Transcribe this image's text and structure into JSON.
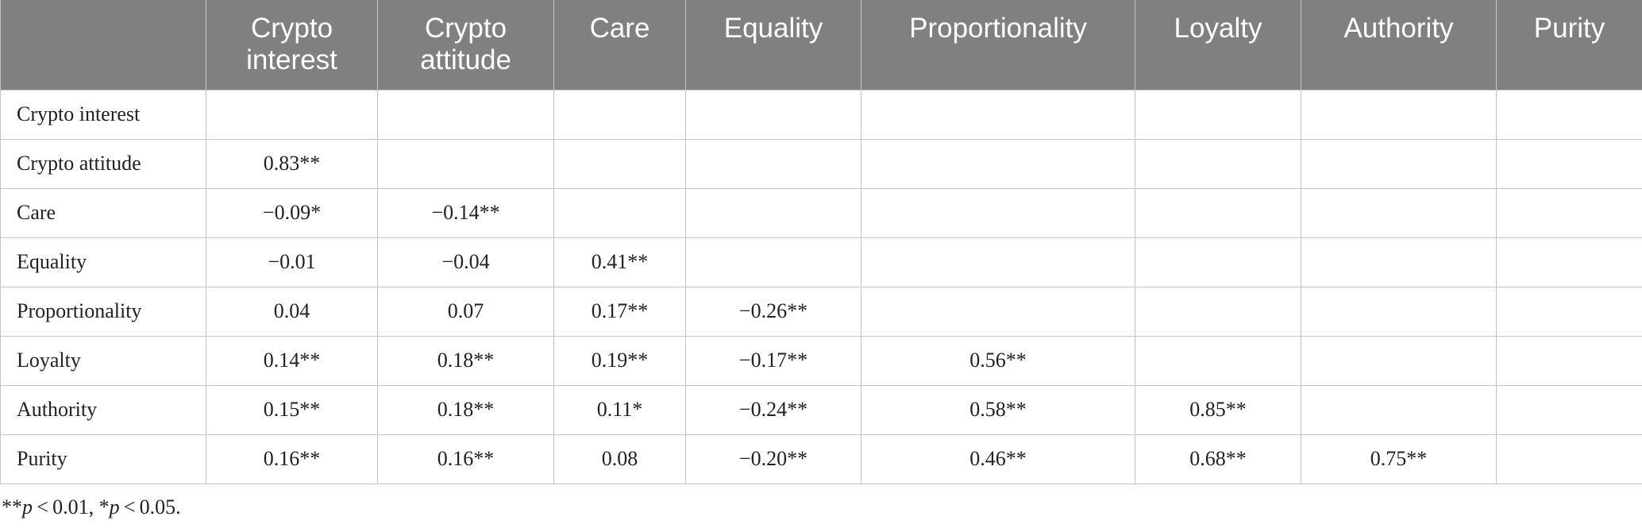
{
  "table": {
    "columns": [
      "",
      "Crypto interest",
      "Crypto attitude",
      "Care",
      "Equality",
      "Proportionality",
      "Loyalty",
      "Authority",
      "Purity"
    ],
    "column_lines": [
      [
        "",
        ""
      ],
      [
        "Crypto",
        "interest"
      ],
      [
        "Crypto",
        "attitude"
      ],
      [
        "Care",
        ""
      ],
      [
        "Equality",
        ""
      ],
      [
        "Proportionality",
        ""
      ],
      [
        "Loyalty",
        ""
      ],
      [
        "Authority",
        ""
      ],
      [
        "Purity",
        ""
      ]
    ],
    "rows": [
      [
        "Crypto interest",
        "",
        "",
        "",
        "",
        "",
        "",
        "",
        ""
      ],
      [
        "Crypto attitude",
        "0.83**",
        "",
        "",
        "",
        "",
        "",
        "",
        ""
      ],
      [
        "Care",
        "−0.09*",
        "−0.14**",
        "",
        "",
        "",
        "",
        "",
        ""
      ],
      [
        "Equality",
        "−0.01",
        "−0.04",
        "0.41**",
        "",
        "",
        "",
        "",
        ""
      ],
      [
        "Proportionality",
        "0.04",
        "0.07",
        "0.17**",
        "−0.26**",
        "",
        "",
        "",
        ""
      ],
      [
        "Loyalty",
        "0.14**",
        "0.18**",
        "0.19**",
        "−0.17**",
        "0.56**",
        "",
        "",
        ""
      ],
      [
        "Authority",
        "0.15**",
        "0.18**",
        "0.11*",
        "−0.24**",
        "0.58**",
        "0.85**",
        "",
        ""
      ],
      [
        "Purity",
        "0.16**",
        "0.16**",
        "0.08",
        "−0.20**",
        "0.46**",
        "0.68**",
        "0.75**",
        ""
      ]
    ]
  },
  "footnote": {
    "stars_double": "**",
    "p1": "p",
    "text1": " < 0.01, ",
    "stars_single": "*",
    "p2": "p",
    "text2": " < 0.05."
  },
  "colors": {
    "header_bg": "#808080",
    "header_text": "#ffffff",
    "grid_line": "#c4c4c4",
    "body_text": "#222222"
  }
}
